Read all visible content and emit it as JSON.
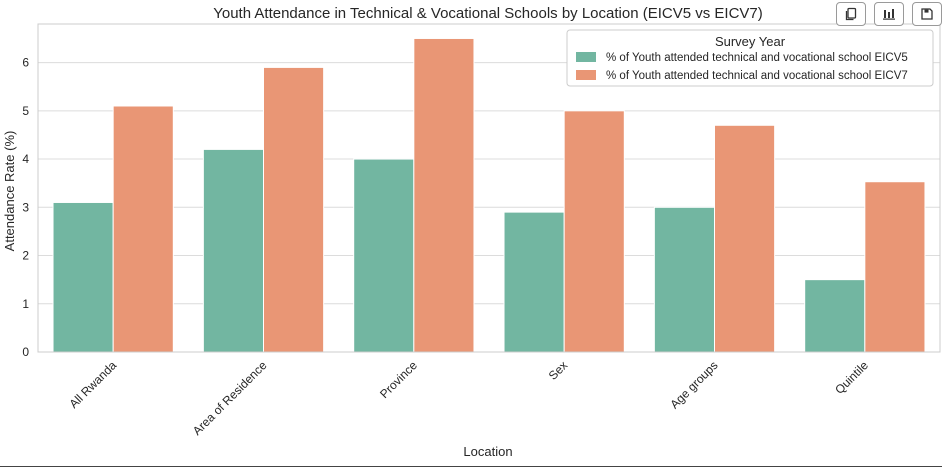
{
  "toolbar": {
    "buttons": [
      {
        "icon": "copy-icon"
      },
      {
        "icon": "bar-chart-icon"
      },
      {
        "icon": "save-icon"
      }
    ]
  },
  "chart_data": {
    "type": "bar",
    "title": "Youth Attendance in Technical & Vocational Schools by Location (EICV5 vs EICV7)",
    "xlabel": "Location",
    "ylabel": "Attendance Rate (%)",
    "categories": [
      "All Rwanda",
      "Area of Residence",
      "Province",
      "Sex",
      "Age groups",
      "Quintile"
    ],
    "series": [
      {
        "name": "% of Youth attended technical and vocational school EICV5",
        "color": "#72b6a1",
        "values": [
          3.1,
          4.2,
          4.0,
          2.9,
          3.0,
          1.5
        ]
      },
      {
        "name": "% of Youth attended technical and vocational school EICV7",
        "color": "#e99675",
        "values": [
          5.1,
          5.9,
          6.5,
          5.0,
          4.7,
          3.53
        ]
      }
    ],
    "ylim": [
      0,
      6.8
    ],
    "yticks": [
      0,
      1,
      2,
      3,
      4,
      5,
      6
    ],
    "grid": true,
    "legend": {
      "title": "Survey Year",
      "placement": "top-right"
    }
  }
}
